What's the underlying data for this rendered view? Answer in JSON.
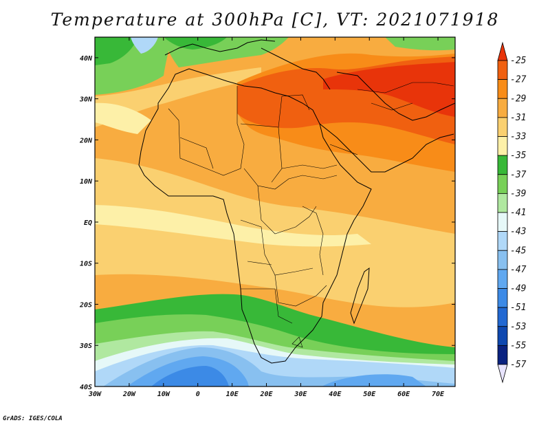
{
  "title": "Temperature at 300hPa [C], VT: 2021071918",
  "credit": "GrADS: IGES/COLA",
  "map": {
    "variable": "Temperature",
    "level": "300hPa",
    "units": "C",
    "valid_time": "2021071918",
    "lon_range": [
      -30,
      75
    ],
    "lat_range": [
      -40,
      45
    ],
    "lat_ticks": [
      {
        "v": 40,
        "label": "40N"
      },
      {
        "v": 30,
        "label": "30N"
      },
      {
        "v": 20,
        "label": "20N"
      },
      {
        "v": 10,
        "label": "10N"
      },
      {
        "v": 0,
        "label": "EQ"
      },
      {
        "v": -10,
        "label": "10S"
      },
      {
        "v": -20,
        "label": "20S"
      },
      {
        "v": -30,
        "label": "30S"
      },
      {
        "v": -40,
        "label": "40S"
      }
    ],
    "lon_ticks": [
      {
        "v": -30,
        "label": "30W"
      },
      {
        "v": -20,
        "label": "20W"
      },
      {
        "v": -10,
        "label": "10W"
      },
      {
        "v": 0,
        "label": "0"
      },
      {
        "v": 10,
        "label": "10E"
      },
      {
        "v": 20,
        "label": "20E"
      },
      {
        "v": 30,
        "label": "30E"
      },
      {
        "v": 40,
        "label": "40E"
      },
      {
        "v": 50,
        "label": "50E"
      },
      {
        "v": 60,
        "label": "60E"
      },
      {
        "v": 70,
        "label": "70E"
      }
    ]
  },
  "colorbar": {
    "levels": [
      -25,
      -27,
      -29,
      -31,
      -33,
      -35,
      -37,
      -39,
      -41,
      -43,
      -45,
      -47,
      -49,
      -51,
      -53,
      -55,
      -57
    ],
    "colors": [
      "#e8340a",
      "#f06010",
      "#f88c18",
      "#f8ac40",
      "#fad070",
      "#fdf0a8",
      "#38b838",
      "#78d058",
      "#b0e8a0",
      "#e6f8f8",
      "#b0d8f8",
      "#88c0f0",
      "#60a8f0",
      "#3c8ae6",
      "#2168d2",
      "#0e48b0",
      "#0a2280",
      "#e8e4ff"
    ]
  }
}
